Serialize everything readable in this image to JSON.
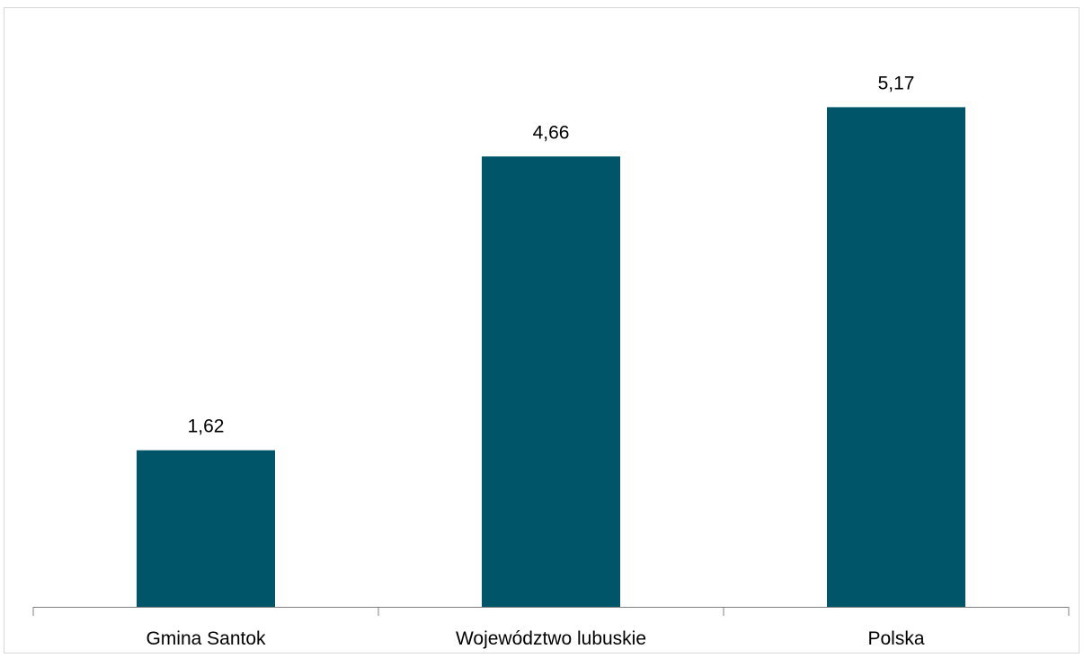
{
  "chart_data": {
    "type": "bar",
    "categories": [
      "Gmina Santok",
      "Województwo lubuskie",
      "Polska"
    ],
    "values": [
      1.62,
      4.66,
      5.17
    ],
    "value_labels": [
      "1,62",
      "4,66",
      "5,17"
    ],
    "ylim": [
      0,
      6
    ],
    "grid": false,
    "legend": "none",
    "bar_color": "#005569",
    "axis_color": "#808080"
  }
}
